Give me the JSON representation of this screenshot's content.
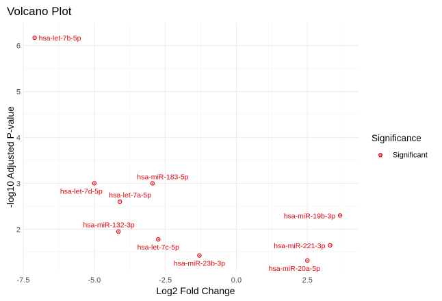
{
  "chart_data": {
    "type": "scatter",
    "title": "Volcano Plot",
    "xlabel": "Log2 Fold Change",
    "ylabel": "-log10 Adjusted P-value",
    "xlim": [
      -7.5,
      4.3
    ],
    "ylim": [
      1.05,
      6.5
    ],
    "x_ticks": [
      -7.5,
      -5.0,
      -2.5,
      0.0,
      2.5
    ],
    "x_tick_labels": [
      "-7.5",
      "-5.0",
      "-2.5",
      "0.0",
      "2.5"
    ],
    "y_ticks": [
      2,
      3,
      4,
      5,
      6
    ],
    "y_tick_labels": [
      "2",
      "3",
      "4",
      "5",
      "6"
    ],
    "grid": true,
    "legend": {
      "title": "Significance",
      "placement": "right",
      "entries": [
        {
          "label": "Significant",
          "color": "#e8000b",
          "glyph": "a"
        }
      ]
    },
    "series": [
      {
        "name": "Significant",
        "color": "#e8000b",
        "points": [
          {
            "x": -7.1,
            "y": 6.17,
            "label": "hsa-let-7b-5p",
            "label_side": "right"
          },
          {
            "x": -5.0,
            "y": 3.0,
            "label": "hsa-let-7d-5p",
            "label_side": "below-left"
          },
          {
            "x": -2.95,
            "y": 3.0,
            "label": "hsa-miR-183-5p",
            "label_side": "above"
          },
          {
            "x": -4.1,
            "y": 2.6,
            "label": "hsa-let-7a-5p",
            "label_side": "above"
          },
          {
            "x": -4.15,
            "y": 1.95,
            "label": "hsa-miR-132-3p",
            "label_side": "above-left"
          },
          {
            "x": -2.75,
            "y": 1.78,
            "label": "hsa-let-7c-5p",
            "label_side": "below"
          },
          {
            "x": -1.3,
            "y": 1.43,
            "label": "hsa-miR-23b-3p",
            "label_side": "below"
          },
          {
            "x": 2.5,
            "y": 1.32,
            "label": "hsa-miR-20a-5p",
            "label_side": "below-left"
          },
          {
            "x": 3.3,
            "y": 1.65,
            "label": "hsa-miR-221-3p",
            "label_side": "left"
          },
          {
            "x": 3.65,
            "y": 2.3,
            "label": "hsa-miR-19b-3p",
            "label_side": "left"
          }
        ]
      }
    ]
  }
}
